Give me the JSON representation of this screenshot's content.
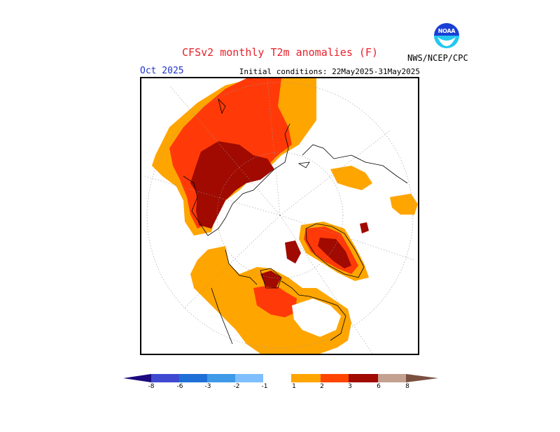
{
  "header": {
    "title": "CFSv2 monthly T2m anomalies (F)",
    "month": "Oct 2025",
    "init_conditions": "Initial conditions: 22May2025-31May2025",
    "agency": "NWS/NCEP/CPC",
    "logo_text": "NOAA"
  },
  "legend": {
    "labels": [
      "-8",
      "-6",
      "-3",
      "-2",
      "-1",
      "1",
      "2",
      "3",
      "6",
      "8"
    ],
    "colors": {
      "below_-8": "#1c0a7e",
      "-8_-6": "#3f4ad1",
      "-6_-3": "#1e6fd6",
      "-3_-2": "#3f9ae8",
      "-2_-1": "#7fbfff",
      "-1_1": "#ffffff",
      "1_2": "#ffa500",
      "2_3": "#ff4500",
      "3_6": "#ff3a08",
      "6_8": "#a00a00",
      "8_up": "#c4a090",
      "above": "#7a5040"
    }
  }
}
